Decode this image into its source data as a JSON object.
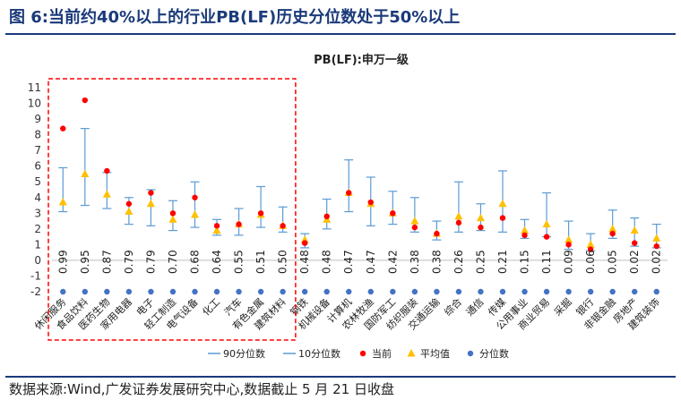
{
  "figure": {
    "title": "图 6:当前约40%以上的行业PB(LF)历史分位数处于50%以上",
    "source": "数据来源:Wind,广发证券发展研究中心,数据截止 5 月 21 日收盘"
  },
  "colors": {
    "p90": "#5b9bd5",
    "p10": "#5b9bd5",
    "current": "#ff0000",
    "average": "#ffc000",
    "percentile": "#4472c4",
    "highlight": "#ff0000",
    "title": "#1a3a7a"
  },
  "chart_data": {
    "type": "scatter",
    "title": "PB(LF):申万一级",
    "ylim": [
      -2,
      11
    ],
    "yticks": [
      -2,
      -1,
      0,
      1,
      2,
      3,
      4,
      5,
      6,
      7,
      8,
      9,
      10,
      11
    ],
    "grid": false,
    "legend_position": "bottom",
    "highlight_group": {
      "from_index": 0,
      "to_index": 10,
      "style": "red-dashed-box"
    },
    "categories": [
      "休闲服务",
      "食品饮料",
      "医药生物",
      "家用电器",
      "电子",
      "轻工制造",
      "电气设备",
      "化工",
      "汽车",
      "有色金属",
      "建筑材料",
      "钢铁",
      "机械设备",
      "计算机",
      "农林牧渔",
      "国防军工",
      "纺织服装",
      "交通运输",
      "综合",
      "通信",
      "传媒",
      "公用事业",
      "商业贸易",
      "采掘",
      "银行",
      "非银金融",
      "房地产",
      "建筑装饰"
    ],
    "series": [
      {
        "name": "90分位数",
        "values": [
          5.9,
          8.4,
          5.6,
          4.0,
          4.5,
          3.8,
          5.0,
          2.6,
          3.3,
          4.7,
          3.4,
          1.7,
          3.9,
          6.4,
          5.3,
          4.4,
          4.0,
          2.5,
          5.0,
          3.6,
          5.7,
          2.6,
          4.3,
          2.5,
          1.7,
          3.2,
          2.7,
          2.3
        ]
      },
      {
        "name": "10分位数",
        "values": [
          3.1,
          3.5,
          3.3,
          2.3,
          2.2,
          1.9,
          2.1,
          1.6,
          1.6,
          2.1,
          1.8,
          0.8,
          2.0,
          3.1,
          2.2,
          2.3,
          1.8,
          1.3,
          1.8,
          1.9,
          1.8,
          1.4,
          1.5,
          0.7,
          0.6,
          1.4,
          0.9,
          0.8
        ]
      },
      {
        "name": "当前",
        "values": [
          8.4,
          10.2,
          5.7,
          3.6,
          4.3,
          3.0,
          4.0,
          2.2,
          2.3,
          3.0,
          2.2,
          1.1,
          2.8,
          4.3,
          3.7,
          3.0,
          2.1,
          1.7,
          2.4,
          2.1,
          2.7,
          1.6,
          1.5,
          1.0,
          0.7,
          1.7,
          1.1,
          0.9
        ]
      },
      {
        "name": "平均值",
        "values": [
          3.7,
          5.5,
          4.2,
          3.1,
          3.6,
          2.6,
          2.9,
          1.9,
          2.3,
          2.9,
          2.2,
          1.3,
          2.6,
          4.3,
          3.6,
          3.0,
          2.5,
          1.7,
          2.8,
          2.7,
          3.6,
          1.9,
          2.3,
          1.3,
          1.0,
          2.0,
          1.9,
          1.4
        ]
      },
      {
        "name": "分位数",
        "values": [
          -2,
          -2,
          -2,
          -2,
          -2,
          -2,
          -2,
          -2,
          -2,
          -2,
          -2,
          -2,
          -2,
          -2,
          -2,
          -2,
          -2,
          -2,
          -2,
          -2,
          -2,
          -2,
          -2,
          -2,
          -2,
          -2,
          -2,
          -2
        ]
      }
    ],
    "percentile_labels": [
      "0.99",
      "0.95",
      "0.87",
      "0.79",
      "0.79",
      "0.70",
      "0.68",
      "0.64",
      "0.55",
      "0.51",
      "0.50",
      "0.48",
      "0.48",
      "0.47",
      "0.47",
      "0.42",
      "0.38",
      "0.38",
      "0.26",
      "0.25",
      "0.21",
      "0.15",
      "0.11",
      "0.09",
      "0.06",
      "0.05",
      "0.02",
      "0.02"
    ]
  }
}
